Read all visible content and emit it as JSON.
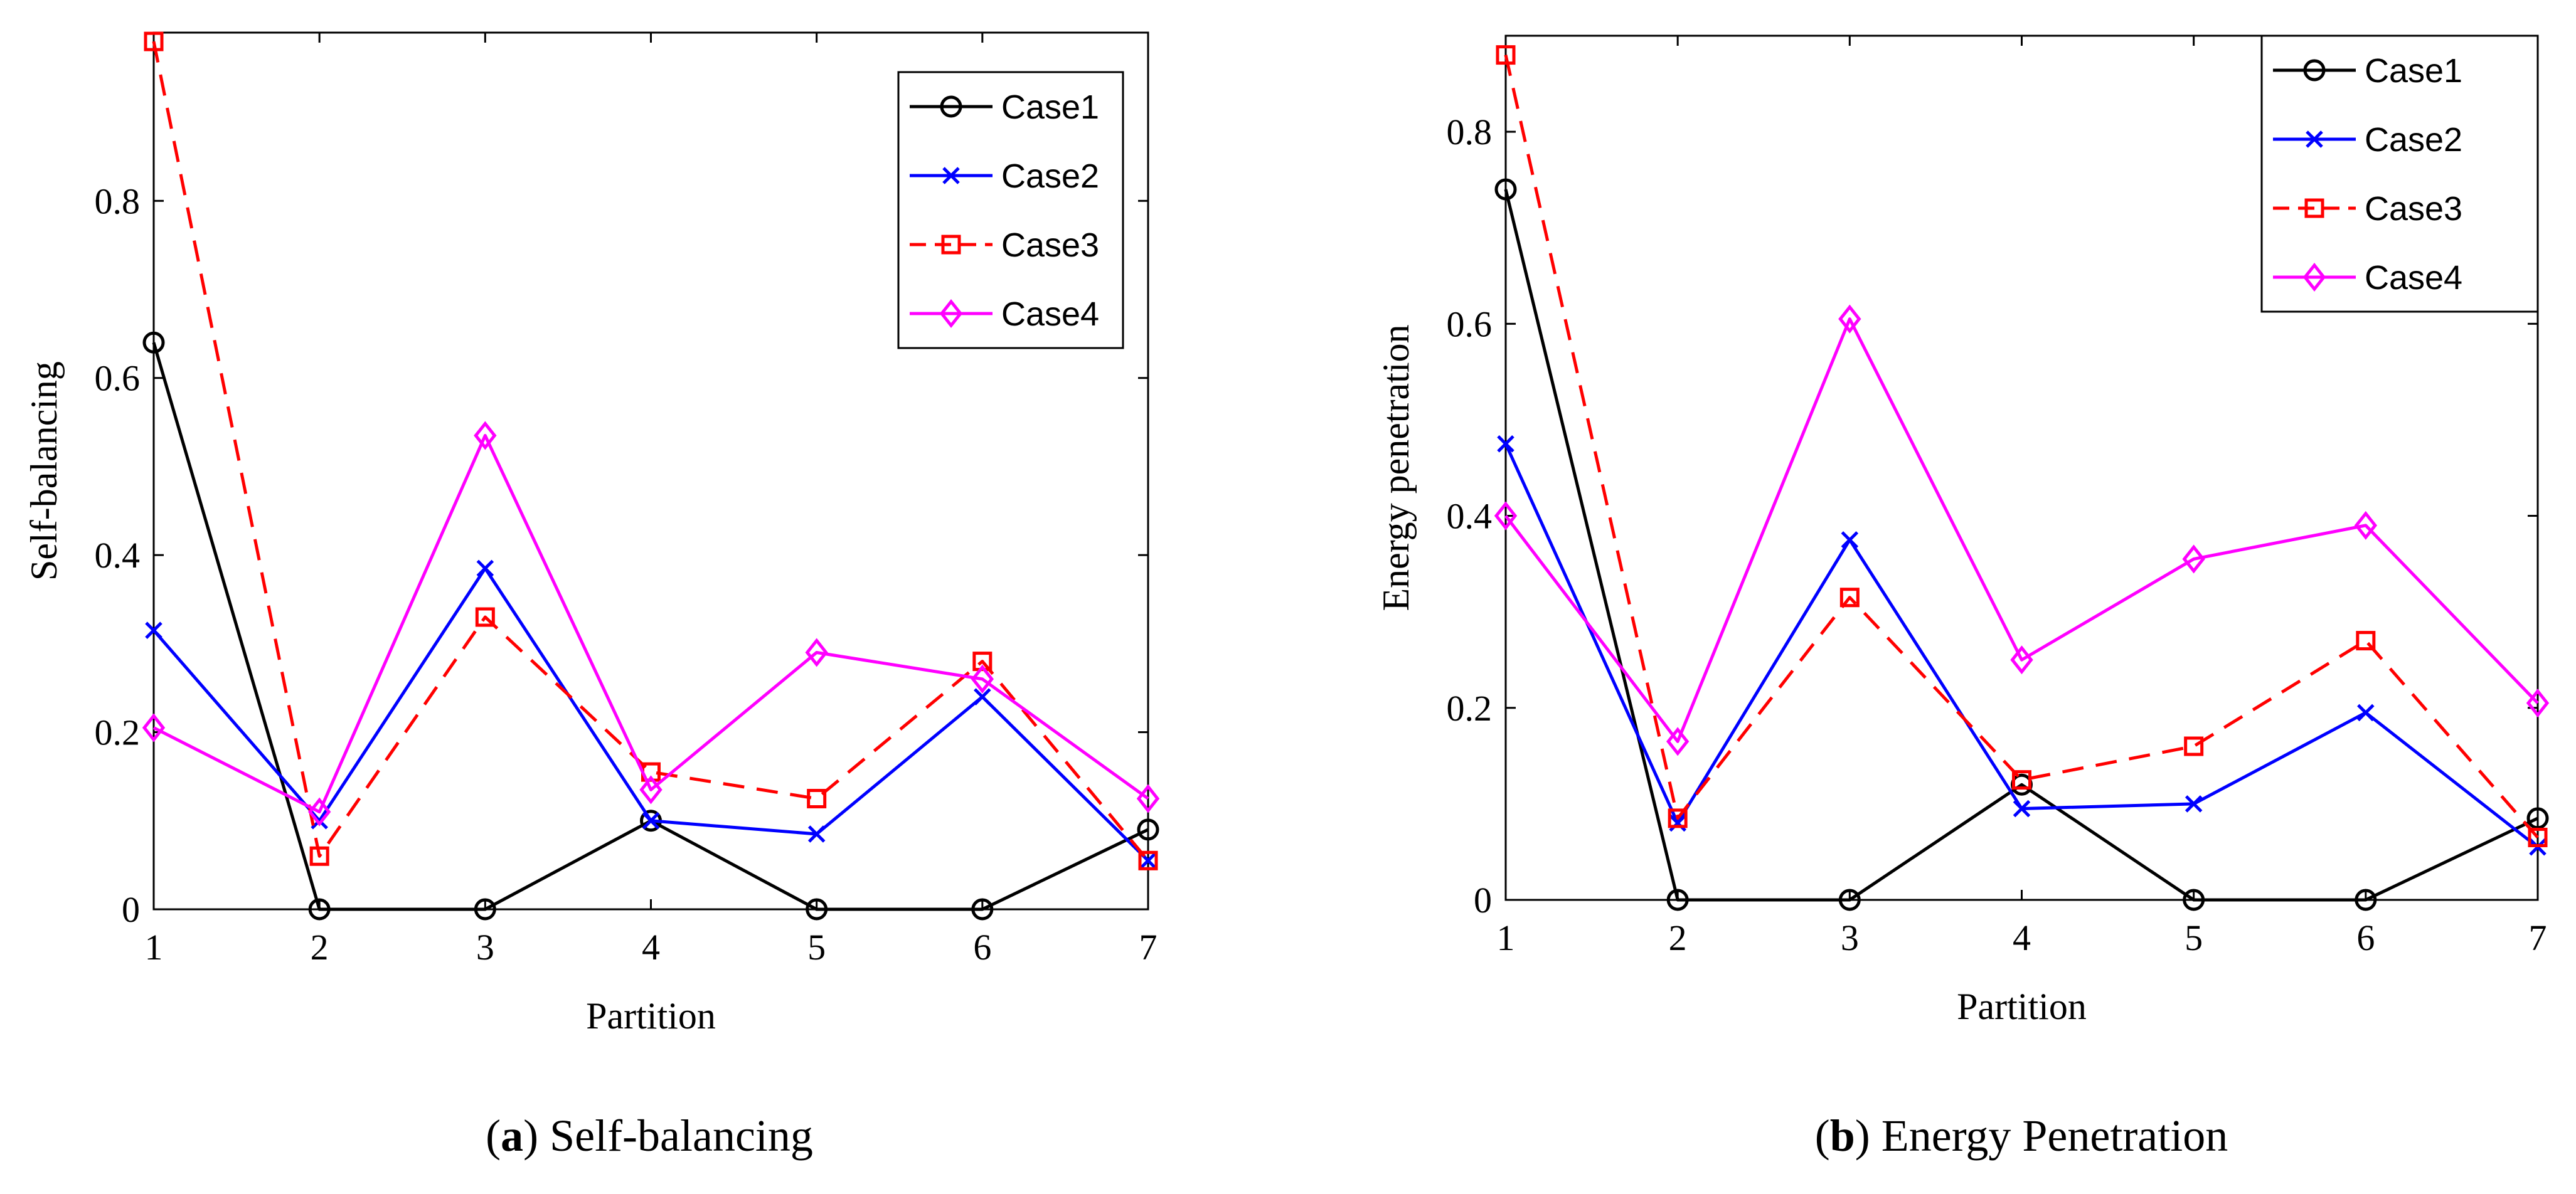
{
  "chart_data": [
    {
      "type": "line",
      "caption_letter": "a",
      "caption_text": "Self-balancing",
      "xlabel": "Partition",
      "ylabel": "Self-balancing",
      "x": [
        1,
        2,
        3,
        4,
        5,
        6,
        7
      ],
      "xlim": [
        1,
        7
      ],
      "ylim": [
        0,
        0.99
      ],
      "yticks": [
        0,
        0.2,
        0.4,
        0.6,
        0.8
      ],
      "ytick_labels": [
        "0",
        "0.2",
        "0.4",
        "0.6",
        "0.8"
      ],
      "grid": false,
      "legend_position": "top-right",
      "series": [
        {
          "name": "Case1",
          "color": "#000000",
          "dash": "solid",
          "marker": "circle",
          "values": [
            0.64,
            0.0,
            0.0,
            0.1,
            0.0,
            0.0,
            0.09
          ]
        },
        {
          "name": "Case2",
          "color": "#0000ff",
          "dash": "solid",
          "marker": "x",
          "values": [
            0.315,
            0.1,
            0.385,
            0.1,
            0.085,
            0.24,
            0.055
          ]
        },
        {
          "name": "Case3",
          "color": "#ff0000",
          "dash": "dashed",
          "marker": "square",
          "values": [
            0.98,
            0.06,
            0.33,
            0.155,
            0.125,
            0.28,
            0.055
          ]
        },
        {
          "name": "Case4",
          "color": "#ff00ff",
          "dash": "solid",
          "marker": "diamond",
          "values": [
            0.205,
            0.11,
            0.535,
            0.135,
            0.29,
            0.26,
            0.125
          ]
        }
      ]
    },
    {
      "type": "line",
      "caption_letter": "b",
      "caption_text": "Energy Penetration",
      "xlabel": "Partition",
      "ylabel": "Energy penetration",
      "x": [
        1,
        2,
        3,
        4,
        5,
        6,
        7
      ],
      "xlim": [
        1,
        7
      ],
      "ylim": [
        0,
        0.9
      ],
      "yticks": [
        0,
        0.2,
        0.4,
        0.6,
        0.8
      ],
      "ytick_labels": [
        "0",
        "0.2",
        "0.4",
        "0.6",
        "0.8"
      ],
      "grid": false,
      "legend_position": "top-right",
      "series": [
        {
          "name": "Case1",
          "color": "#000000",
          "dash": "solid",
          "marker": "circle",
          "values": [
            0.74,
            0.0,
            0.0,
            0.12,
            0.0,
            0.0,
            0.085
          ]
        },
        {
          "name": "Case2",
          "color": "#0000ff",
          "dash": "solid",
          "marker": "x",
          "values": [
            0.475,
            0.08,
            0.375,
            0.095,
            0.1,
            0.195,
            0.055
          ]
        },
        {
          "name": "Case3",
          "color": "#ff0000",
          "dash": "dashed",
          "marker": "square",
          "values": [
            0.88,
            0.085,
            0.315,
            0.125,
            0.16,
            0.27,
            0.065
          ]
        },
        {
          "name": "Case4",
          "color": "#ff00ff",
          "dash": "solid",
          "marker": "diamond",
          "values": [
            0.4,
            0.165,
            0.605,
            0.25,
            0.355,
            0.39,
            0.205
          ]
        }
      ]
    }
  ]
}
